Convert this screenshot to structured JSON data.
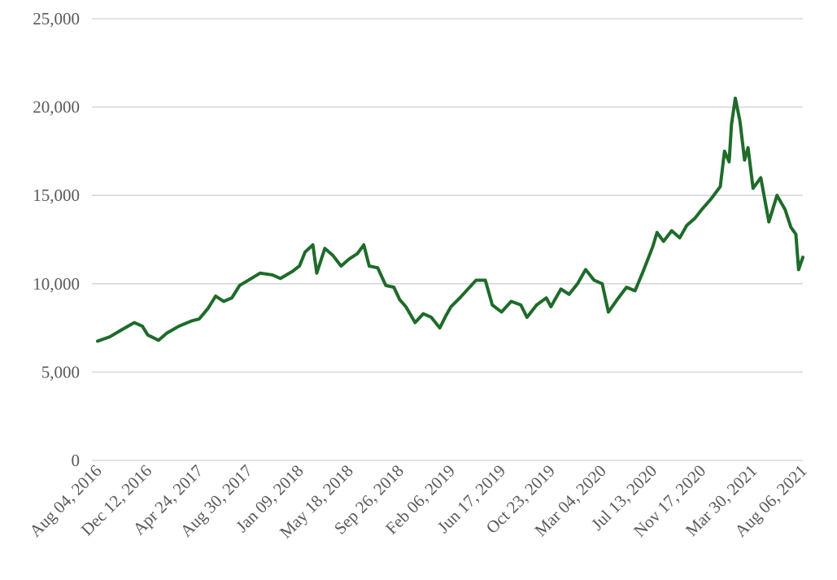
{
  "chart_data": {
    "type": "line",
    "x": [
      "2016-08-04",
      "2016-09-05",
      "2016-10-06",
      "2016-11-07",
      "2016-11-28",
      "2016-12-12",
      "2017-01-09",
      "2017-01-30",
      "2017-03-03",
      "2017-04-05",
      "2017-04-24",
      "2017-05-17",
      "2017-06-06",
      "2017-06-27",
      "2017-07-18",
      "2017-08-07",
      "2017-08-30",
      "2017-09-29",
      "2017-10-31",
      "2017-11-21",
      "2017-12-22",
      "2018-01-09",
      "2018-01-24",
      "2018-02-13",
      "2018-02-23",
      "2018-03-16",
      "2018-04-06",
      "2018-04-27",
      "2018-05-18",
      "2018-06-08",
      "2018-06-25",
      "2018-07-09",
      "2018-07-31",
      "2018-08-21",
      "2018-09-11",
      "2018-09-26",
      "2018-10-12",
      "2018-11-05",
      "2018-11-26",
      "2018-12-17",
      "2019-01-08",
      "2019-01-24",
      "2019-02-06",
      "2019-03-01",
      "2019-03-22",
      "2019-04-12",
      "2019-05-06",
      "2019-05-24",
      "2019-06-17",
      "2019-07-12",
      "2019-08-06",
      "2019-08-22",
      "2019-09-16",
      "2019-10-11",
      "2019-10-23",
      "2019-11-18",
      "2019-12-09",
      "2019-12-31",
      "2020-01-21",
      "2020-02-12",
      "2020-03-04",
      "2020-03-20",
      "2020-04-15",
      "2020-05-06",
      "2020-05-28",
      "2020-06-18",
      "2020-07-13",
      "2020-07-24",
      "2020-08-10",
      "2020-08-31",
      "2020-09-21",
      "2020-10-09",
      "2020-10-30",
      "2020-11-17",
      "2020-12-11",
      "2021-01-04",
      "2021-01-15",
      "2021-01-27",
      "2021-02-02",
      "2021-02-12",
      "2021-02-24",
      "2021-03-08",
      "2021-03-17",
      "2021-03-30",
      "2021-04-19",
      "2021-05-10",
      "2021-05-31",
      "2021-06-21",
      "2021-07-06",
      "2021-07-19",
      "2021-07-26",
      "2021-08-06"
    ],
    "series": [
      {
        "color": "#1e6b2a",
        "values": [
          6750,
          7000,
          7400,
          7800,
          7600,
          7100,
          6800,
          7200,
          7600,
          7900,
          8000,
          8600,
          9300,
          9000,
          9200,
          9900,
          10200,
          10600,
          10500,
          10300,
          10700,
          11000,
          11800,
          12200,
          10600,
          12000,
          11600,
          11000,
          11400,
          11700,
          12200,
          11000,
          10900,
          9900,
          9800,
          9100,
          8700,
          7800,
          8300,
          8100,
          7500,
          8200,
          8700,
          9200,
          9700,
          10200,
          10200,
          8800,
          8400,
          9000,
          8800,
          8100,
          8800,
          9200,
          8700,
          9700,
          9400,
          10000,
          10800,
          10200,
          10000,
          8400,
          9200,
          9800,
          9600,
          10700,
          12100,
          12900,
          12400,
          13000,
          12600,
          13300,
          13700,
          14200,
          14800,
          15500,
          17500,
          16900,
          19000,
          20500,
          19200,
          17000,
          17700,
          15400,
          16000,
          13500,
          15000,
          14200,
          13200,
          12800,
          10800,
          11500
        ]
      }
    ],
    "xlim": [
      "2016-08-04",
      "2021-08-06"
    ],
    "xticks": [
      {
        "value": "2016-08-04",
        "label": "Aug 04, 2016"
      },
      {
        "value": "2016-12-12",
        "label": "Dec 12, 2016"
      },
      {
        "value": "2017-04-24",
        "label": "Apr 24, 2017"
      },
      {
        "value": "2017-08-30",
        "label": "Aug 30, 2017"
      },
      {
        "value": "2018-01-09",
        "label": "Jan 09, 2018"
      },
      {
        "value": "2018-05-18",
        "label": "May 18, 2018"
      },
      {
        "value": "2018-09-26",
        "label": "Sep 26, 2018"
      },
      {
        "value": "2019-02-06",
        "label": "Feb 06, 2019"
      },
      {
        "value": "2019-06-17",
        "label": "Jun 17, 2019"
      },
      {
        "value": "2019-10-23",
        "label": "Oct 23, 2019"
      },
      {
        "value": "2020-03-04",
        "label": "Mar 04, 2020"
      },
      {
        "value": "2020-07-13",
        "label": "Jul 13, 2020"
      },
      {
        "value": "2020-11-17",
        "label": "Nov 17, 2020"
      },
      {
        "value": "2021-03-30",
        "label": "Mar 30, 2021"
      },
      {
        "value": "2021-08-06",
        "label": "Aug 06, 2021"
      }
    ],
    "ylim": [
      0,
      25000
    ],
    "yticks": [
      0,
      {
        "value": 5000,
        "label": "5,000"
      },
      {
        "value": 10000,
        "label": "10,000"
      },
      {
        "value": 15000,
        "label": "15,000"
      },
      {
        "value": 20000,
        "label": "20,000"
      },
      {
        "value": 25000,
        "label": "25,000"
      }
    ],
    "grid": true
  }
}
